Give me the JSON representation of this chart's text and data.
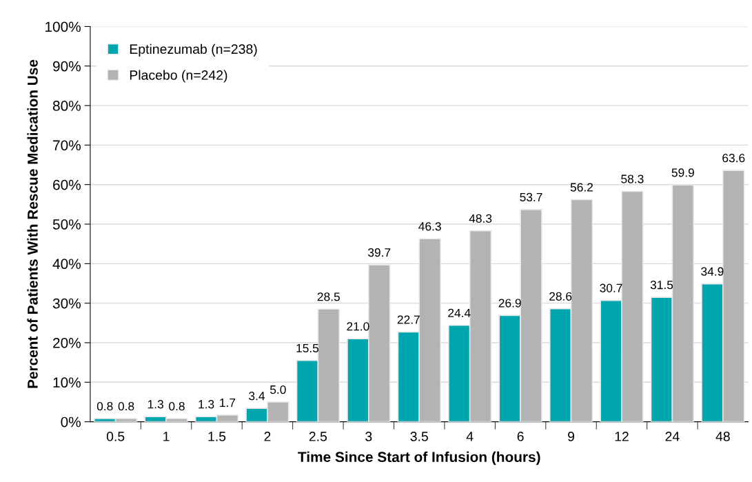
{
  "chart_data": {
    "type": "bar",
    "xlabel": "Time Since Start of Infusion (hours)",
    "ylabel": "Percent of Patients With Rescue Medication Use",
    "categories": [
      "0.5",
      "1",
      "1.5",
      "2",
      "2.5",
      "3",
      "3.5",
      "4",
      "6",
      "9",
      "12",
      "24",
      "48"
    ],
    "series": [
      {
        "name": "Eptinezumab (n=238)",
        "color": "#00a6ad",
        "values": [
          0.8,
          1.3,
          1.3,
          3.4,
          15.5,
          21.0,
          22.7,
          24.4,
          26.9,
          28.6,
          30.7,
          31.5,
          34.9
        ],
        "value_labels": [
          "0.8",
          "1.3",
          "1.3",
          "3.4",
          "15.5",
          "21.0",
          "22.7",
          "24.4",
          "26.9",
          "28.6",
          "30.7",
          "31.5",
          "34.9"
        ]
      },
      {
        "name": "Placebo (n=242)",
        "color": "#b3b3b3",
        "values": [
          0.8,
          0.8,
          1.7,
          5.0,
          28.5,
          39.7,
          46.3,
          48.3,
          53.7,
          56.2,
          58.3,
          59.9,
          63.6
        ],
        "value_labels": [
          "0.8",
          "0.8",
          "1.7",
          "5.0",
          "28.5",
          "39.7",
          "46.3",
          "48.3",
          "53.7",
          "56.2",
          "58.3",
          "59.9",
          "63.6"
        ]
      }
    ],
    "ylim": [
      0,
      100
    ],
    "yticks": [
      {
        "value": 0,
        "label": "0%"
      },
      {
        "value": 10,
        "label": "10%"
      },
      {
        "value": 20,
        "label": "20%"
      },
      {
        "value": 30,
        "label": "30%"
      },
      {
        "value": 40,
        "label": "40%"
      },
      {
        "value": 50,
        "label": "50%"
      },
      {
        "value": 60,
        "label": "60%"
      },
      {
        "value": 70,
        "label": "70%"
      },
      {
        "value": 80,
        "label": "80%"
      },
      {
        "value": 90,
        "label": "90%"
      },
      {
        "value": 100,
        "label": "100%"
      }
    ],
    "grid": "y",
    "legend": "top left"
  }
}
